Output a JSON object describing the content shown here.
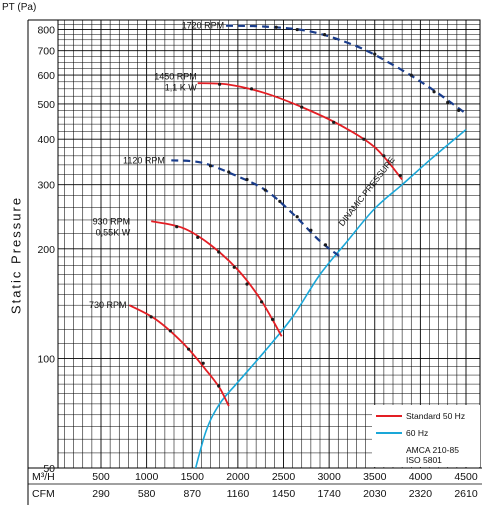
{
  "chart_data": {
    "type": "line",
    "title": "",
    "y_unit_label": "PT (Pa)",
    "ylabel": "Static Pressure",
    "y_scale": "log",
    "ylim": [
      50,
      850
    ],
    "xlim": [
      0,
      4500
    ],
    "y_ticks": [
      50,
      100,
      200,
      300,
      400,
      500,
      600,
      700,
      800
    ],
    "x_rows": [
      {
        "label": "M³/H",
        "ticks": [
          500,
          1000,
          1500,
          2000,
          2500,
          3000,
          3500,
          4000,
          4500
        ],
        "tick_labels": [
          "500",
          "1000",
          "1500",
          "2000",
          "2500",
          "3000",
          "3500",
          "4000",
          "4500"
        ]
      },
      {
        "label": "CFM",
        "ticks": [
          500,
          1000,
          1500,
          2000,
          2500,
          3000,
          3500,
          4000,
          4500
        ],
        "tick_labels": [
          "290",
          "580",
          "870",
          "1160",
          "1450",
          "1740",
          "2030",
          "2320",
          "2610"
        ]
      }
    ],
    "grid": true,
    "legend_position": "bottom-right",
    "legend": [
      {
        "name": "Standard 50 Hz",
        "color": "#e31e24"
      },
      {
        "name": "60 Hz",
        "color": "#1aa7d8"
      }
    ],
    "standards": [
      "AMCA 210-85",
      "ISO 5801"
    ],
    "series": [
      {
        "label": "730 RPM",
        "hz": "50",
        "color": "#e31e24",
        "label_anchor": [
          780,
          140
        ],
        "label_side": "left",
        "points": [
          [
            810,
            140
          ],
          [
            1100,
            128
          ],
          [
            1400,
            110
          ],
          [
            1650,
            93
          ],
          [
            1800,
            83
          ],
          [
            1900,
            74
          ]
        ],
        "markers": [
          [
            1050,
            130
          ],
          [
            1260,
            119
          ],
          [
            1460,
            106
          ],
          [
            1620,
            97
          ],
          [
            1790,
            84
          ]
        ]
      },
      {
        "label": "930 RPM",
        "sublabel": "0,55K W",
        "hz": "50",
        "color": "#e31e24",
        "label_anchor": [
          820,
          238
        ],
        "label_side": "left",
        "points": [
          [
            1050,
            238
          ],
          [
            1400,
            228
          ],
          [
            1700,
            205
          ],
          [
            2000,
            175
          ],
          [
            2250,
            145
          ],
          [
            2480,
            115
          ]
        ],
        "markers": [
          [
            1330,
            230
          ],
          [
            1560,
            215
          ],
          [
            1790,
            196
          ],
          [
            1960,
            178
          ],
          [
            2100,
            160
          ],
          [
            2260,
            143
          ],
          [
            2380,
            128
          ]
        ]
      },
      {
        "label": "1120 RPM",
        "hz": "60",
        "color": "#1a3d8c",
        "label_anchor": [
          1200,
          350
        ],
        "label_side": "left",
        "points": [
          [
            1270,
            350
          ],
          [
            1600,
            345
          ],
          [
            1950,
            320
          ],
          [
            2300,
            290
          ],
          [
            2600,
            250
          ],
          [
            2900,
            210
          ],
          [
            3150,
            188
          ]
        ],
        "markers": [
          [
            1700,
            338
          ],
          [
            1900,
            325
          ],
          [
            2100,
            310
          ],
          [
            2300,
            290
          ],
          [
            2460,
            270
          ],
          [
            2650,
            245
          ],
          [
            2800,
            225
          ],
          [
            2960,
            205
          ]
        ]
      },
      {
        "label": "1450 RPM",
        "sublabel": "1,1 K W",
        "hz": "50",
        "color": "#e31e24",
        "label_anchor": [
          1550,
          595
        ],
        "label_side": "left",
        "points": [
          [
            1560,
            570
          ],
          [
            1900,
            565
          ],
          [
            2300,
            535
          ],
          [
            2700,
            490
          ],
          [
            3100,
            440
          ],
          [
            3500,
            380
          ],
          [
            3800,
            310
          ]
        ],
        "markers": [
          [
            1800,
            566
          ],
          [
            2150,
            550
          ],
          [
            2700,
            490
          ],
          [
            3050,
            445
          ],
          [
            3380,
            400
          ],
          [
            3600,
            360
          ],
          [
            3780,
            318
          ]
        ]
      },
      {
        "label": "1720 RPM",
        "hz": "60",
        "color": "#1a3d8c",
        "label_anchor": [
          1850,
          820
        ],
        "label_side": "left",
        "points": [
          [
            1870,
            820
          ],
          [
            2300,
            815
          ],
          [
            2800,
            790
          ],
          [
            3300,
            720
          ],
          [
            3700,
            640
          ],
          [
            4100,
            555
          ],
          [
            4500,
            470
          ]
        ],
        "markers": [
          [
            2420,
            812
          ],
          [
            2650,
            800
          ],
          [
            2950,
            775
          ],
          [
            3500,
            685
          ],
          [
            3900,
            600
          ],
          [
            4150,
            540
          ],
          [
            4300,
            505
          ],
          [
            4420,
            480
          ]
        ]
      }
    ],
    "system_curve": {
      "label": "DINAMIC PRESSURE",
      "color": "#1aa7d8",
      "label_position": [
        3150,
        230
      ],
      "points": [
        [
          1500,
          46
        ],
        [
          1650,
          63
        ],
        [
          1800,
          75
        ],
        [
          2000,
          86
        ],
        [
          2300,
          105
        ],
        [
          2600,
          130
        ],
        [
          2900,
          170
        ],
        [
          3200,
          210
        ],
        [
          3500,
          258
        ],
        [
          3800,
          300
        ],
        [
          4100,
          350
        ],
        [
          4500,
          425
        ]
      ]
    }
  }
}
